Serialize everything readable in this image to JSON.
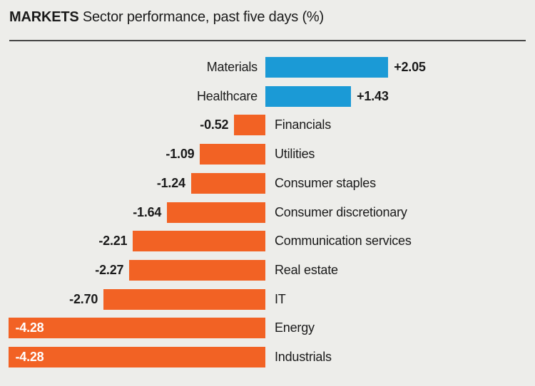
{
  "header": {
    "kicker": "MARKETS",
    "title": "Sector performance, past five days (%)"
  },
  "chart_data": {
    "type": "bar",
    "orientation": "horizontal",
    "title": "MARKETS Sector performance, past five days (%)",
    "xlabel": "",
    "ylabel": "",
    "xlim": [
      -4.5,
      2.3
    ],
    "grid": false,
    "legend": "none",
    "categories": [
      "Materials",
      "Healthcare",
      "Financials",
      "Utilities",
      "Consumer staples",
      "Consumer discretionary",
      "Communication services",
      "Real estate",
      "IT",
      "Energy",
      "Industrials"
    ],
    "values": [
      2.05,
      1.43,
      -0.52,
      -1.09,
      -1.24,
      -1.64,
      -2.21,
      -2.27,
      -2.7,
      -4.28,
      -4.28
    ],
    "value_labels": [
      "+2.05",
      "+1.43",
      "-0.52",
      "-1.09",
      "-1.24",
      "-1.64",
      "-2.21",
      "-2.27",
      "-2.70",
      "-4.28",
      "-4.28"
    ],
    "colors": {
      "positive": "#1B9AD6",
      "negative": "#F26224",
      "value_text": "#1A1A1A",
      "value_text_inside_bar": "#FFFFFF",
      "background": "#EDEDEA",
      "rule": "#454545"
    }
  }
}
